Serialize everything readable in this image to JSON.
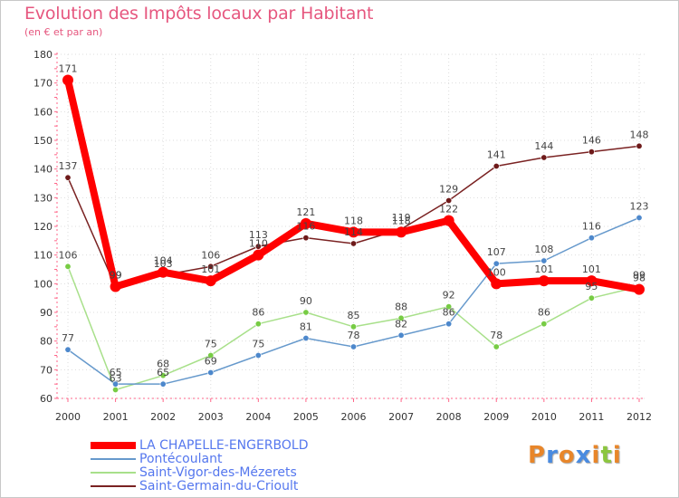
{
  "header": {
    "title": "Evolution des Impôts locaux par Habitant",
    "subtitle": "(en € et par an)"
  },
  "logo": {
    "text": "Proxiti",
    "letters": [
      "P",
      "r",
      "o",
      "x",
      "i",
      "t",
      "i"
    ],
    "colors": [
      "#e8862a",
      "#4a8be0",
      "#e8862a",
      "#4a8be0",
      "#e8862a",
      "#8cc63f",
      "#e8862a"
    ]
  },
  "chart_data": {
    "type": "line",
    "title": "Evolution des Impôts locaux par Habitant",
    "subtitle": "(en € et par an)",
    "xlabel": "",
    "ylabel": "",
    "x": [
      "2000",
      "2001",
      "2002",
      "2003",
      "2004",
      "2005",
      "2006",
      "2007",
      "2008",
      "2009",
      "2010",
      "2011",
      "2012"
    ],
    "ylim": [
      60,
      180
    ],
    "yticks": [
      "60",
      "70",
      "80",
      "90",
      "100",
      "110",
      "120",
      "130",
      "140",
      "150",
      "160",
      "170",
      "180"
    ],
    "grid": true,
    "legend_position": "bottom-left",
    "series": [
      {
        "name": "Saint-Germain-du-Crioult",
        "color": "#7a2222",
        "marker": "#6e1a1a",
        "values": [
          137,
          99,
          103,
          106,
          113,
          116,
          114,
          119,
          129,
          141,
          144,
          146,
          148
        ],
        "labels": [
          "137",
          "99",
          "103",
          "106",
          "113",
          "116",
          "114",
          "119",
          "129",
          "141",
          "144",
          "146",
          "148"
        ]
      },
      {
        "name": "Saint-Vigor-des-Mézerets",
        "color": "#a8e08a",
        "marker": "#77cc44",
        "values": [
          106,
          63,
          68,
          75,
          86,
          90,
          85,
          88,
          92,
          78,
          86,
          95,
          99
        ],
        "labels": [
          "106",
          "63",
          "68",
          "75",
          "86",
          "90",
          "85",
          "88",
          "92",
          "78",
          "86",
          "95",
          "99"
        ]
      },
      {
        "name": "Pontécoulant",
        "color": "#6699cc",
        "marker": "#4d88cc",
        "values": [
          77,
          65,
          65,
          69,
          75,
          81,
          78,
          82,
          86,
          107,
          108,
          116,
          123
        ],
        "labels": [
          "77",
          "65",
          "65",
          "69",
          "75",
          "81",
          "78",
          "82",
          "86",
          "107",
          "108",
          "116",
          "123"
        ]
      },
      {
        "name": "LA CHAPELLE-ENGERBOLD",
        "color": "#ff0000",
        "marker": "#ff0000",
        "values": [
          171,
          99,
          104,
          101,
          110,
          121,
          118,
          118,
          122,
          100,
          101,
          101,
          98
        ],
        "labels": [
          "171",
          "99",
          "104",
          "101",
          "110",
          "121",
          "118",
          "118",
          "122",
          "100",
          "101",
          "101",
          "98"
        ]
      }
    ]
  },
  "legend": {
    "items": [
      {
        "label": "LA CHAPELLE-ENGERBOLD",
        "color": "#ff0000",
        "thickness": 8
      },
      {
        "label": "Pontécoulant",
        "color": "#6699cc",
        "thickness": 2
      },
      {
        "label": "Saint-Vigor-des-Mézerets",
        "color": "#a8e08a",
        "thickness": 2
      },
      {
        "label": "Saint-Germain-du-Crioult",
        "color": "#7a2222",
        "thickness": 2
      }
    ]
  }
}
